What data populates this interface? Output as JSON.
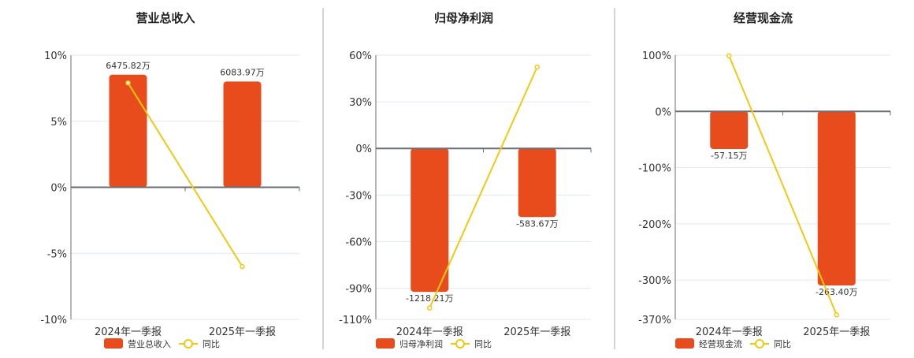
{
  "colors": {
    "bar": "#e84c1d",
    "line": "#f2c811",
    "grid": "#e3e7ef",
    "axis": "#6b6e76",
    "divider": "#aaaaaa"
  },
  "chart_data": [
    {
      "type": "bar+line",
      "title": "营业总收入",
      "categories": [
        "2024年一季报",
        "2025年一季报"
      ],
      "bar_series": {
        "name": "营业总收入",
        "values": [
          6475.82,
          6083.97
        ],
        "labels": [
          "6475.82万",
          "6083.97万"
        ]
      },
      "line_series": {
        "name": "同比",
        "values": [
          7.9,
          -6.0
        ]
      },
      "yticks": [
        "10%",
        "5%",
        "0%",
        "-5%",
        "-10%"
      ],
      "ytick_values": [
        10,
        5,
        0,
        -5,
        -10
      ],
      "ylim": [
        -10,
        10
      ],
      "bar_ylim": [
        -7600,
        7600
      ]
    },
    {
      "type": "bar+line",
      "title": "归母净利润",
      "categories": [
        "2024年一季报",
        "2025年一季报"
      ],
      "bar_series": {
        "name": "归母净利润",
        "values": [
          -1218.21,
          -583.67
        ],
        "labels": [
          "-1218.21万",
          "-583.67万"
        ]
      },
      "line_series": {
        "name": "同比",
        "values": [
          -102.7,
          52.4
        ]
      },
      "yticks": [
        "60%",
        "30%",
        "0%",
        "-30%",
        "-60%",
        "-90%",
        "-110%"
      ],
      "ytick_values": [
        60,
        30,
        0,
        -30,
        -60,
        -90,
        -110
      ],
      "ylim": [
        -110,
        60
      ],
      "bar_ylim": [
        -1452,
        790
      ]
    },
    {
      "type": "bar+line",
      "title": "经营现金流",
      "categories": [
        "2024年一季报",
        "2025年一季报"
      ],
      "bar_series": {
        "name": "经营现金流",
        "values": [
          -57.15,
          -263.4
        ],
        "labels": [
          "-57.15万",
          "-263.40万"
        ]
      },
      "line_series": {
        "name": "同比",
        "values": [
          99,
          -362
        ]
      },
      "yticks": [
        "100%",
        "0%",
        "-100%",
        "-200%",
        "-300%",
        "-370%"
      ],
      "ytick_values": [
        100,
        0,
        -100,
        -200,
        -300,
        -370
      ],
      "ylim": [
        -370,
        100
      ],
      "bar_ylim": [
        -314.6,
        84.6
      ]
    }
  ]
}
